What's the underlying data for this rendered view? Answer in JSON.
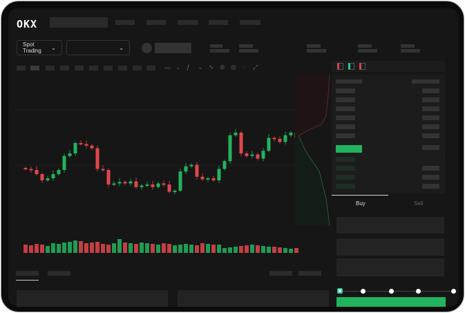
{
  "header": {
    "logo": "OKX"
  },
  "toolbar": {
    "market_select": "Spot Trading",
    "pair_select": ""
  },
  "trade": {
    "tabs": [
      "Buy",
      "Sell"
    ],
    "active_tab": "Buy"
  },
  "colors": {
    "up": "#22b35e",
    "down": "#e0474c",
    "background": "#161616"
  },
  "icons": {
    "dropdown": "chevron-down-icon",
    "layouts": [
      "orderbook-both-icon",
      "orderbook-buy-icon",
      "orderbook-sell-icon"
    ]
  },
  "chart_data": {
    "type": "candlestick",
    "closes": [
      90,
      88,
      80,
      68,
      72,
      80,
      88,
      115,
      120,
      140,
      138,
      135,
      130,
      90,
      88,
      60,
      62,
      65,
      62,
      66,
      55,
      58,
      60,
      55,
      62,
      60,
      46,
      48,
      85,
      95,
      98,
      75,
      70,
      72,
      68,
      90,
      105,
      155,
      160,
      120,
      115,
      118,
      110,
      125,
      150,
      148,
      142,
      155,
      160,
      150
    ],
    "volumes": [
      12,
      11,
      13,
      12,
      10,
      14,
      13,
      15,
      16,
      18,
      17,
      14,
      15,
      16,
      13,
      12,
      14,
      20,
      15,
      14,
      13,
      15,
      14,
      13,
      12,
      14,
      13,
      11,
      12,
      13,
      12,
      11,
      14,
      13,
      12,
      12,
      7,
      8,
      9,
      10,
      11,
      12,
      11,
      10,
      9,
      9,
      8,
      7,
      6,
      7
    ]
  }
}
